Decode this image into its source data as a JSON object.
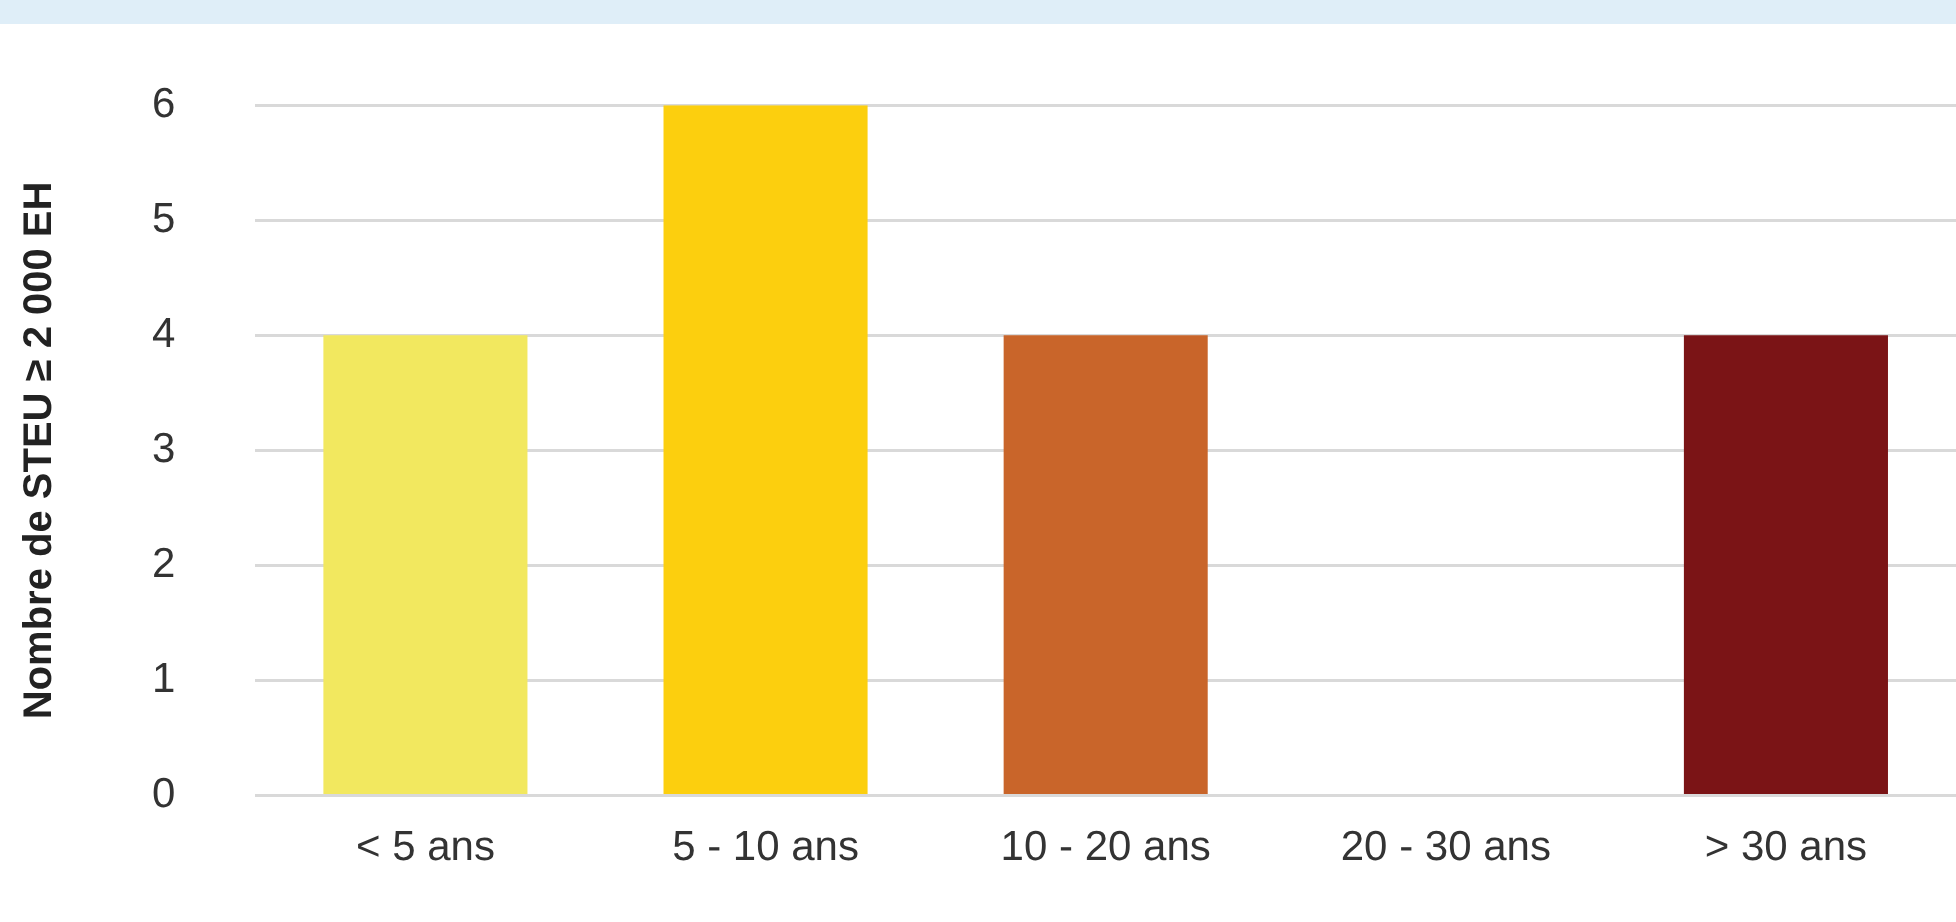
{
  "chart_data": {
    "type": "bar",
    "ylabel": "Nombre de STEU ≥ 2 000 EH",
    "categories": [
      "< 5 ans",
      "5 - 10 ans",
      "10 - 20 ans",
      "20 - 30 ans",
      "> 30 ans"
    ],
    "values": [
      4,
      6,
      4,
      0,
      4
    ],
    "colors": [
      "#f2e85f",
      "#fccf0e",
      "#c9652a",
      "#ffffff",
      "#7b1416"
    ],
    "ylim": [
      0,
      6
    ],
    "yticks": [
      0,
      1,
      2,
      3,
      4,
      5,
      6
    ],
    "grid": "y",
    "legend": false
  }
}
